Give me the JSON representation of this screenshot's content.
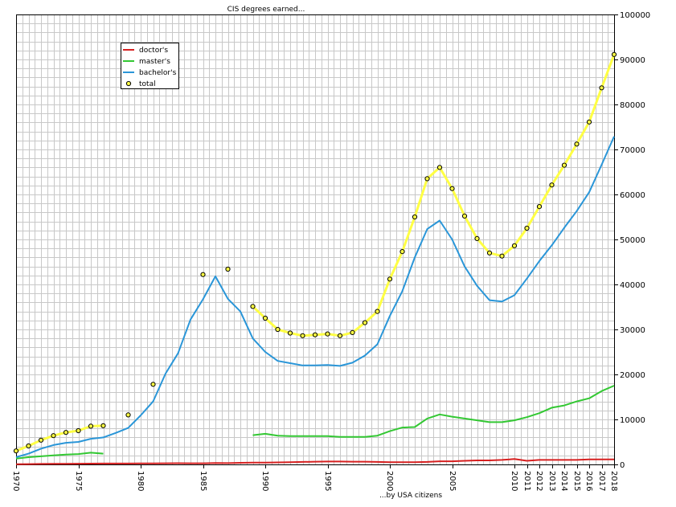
{
  "chart_data": {
    "type": "line",
    "title": "CIS degrees earned...",
    "xlabel": "...by USA citizens",
    "ylabel": "",
    "xlim": [
      1970,
      2018
    ],
    "ylim": [
      0,
      100000
    ],
    "grid": true,
    "legend_position": "top-left",
    "x_ticks": [
      {
        "value": 1970,
        "label": "1970"
      },
      {
        "value": 1975,
        "label": "1975"
      },
      {
        "value": 1980,
        "label": "1980"
      },
      {
        "value": 1985,
        "label": "1985"
      },
      {
        "value": 1990,
        "label": "1990"
      },
      {
        "value": 1995,
        "label": "1995"
      },
      {
        "value": 2000,
        "label": "2000"
      },
      {
        "value": 2005,
        "label": "2005"
      },
      {
        "value": 2010,
        "label": "2010"
      },
      {
        "value": 2011,
        "label": "2011"
      },
      {
        "value": 2012,
        "label": "2012"
      },
      {
        "value": 2013,
        "label": "2013"
      },
      {
        "value": 2014,
        "label": "2014"
      },
      {
        "value": 2015,
        "label": "2015"
      },
      {
        "value": 2016,
        "label": "2016"
      },
      {
        "value": 2017,
        "label": "2017"
      },
      {
        "value": 2018,
        "label": "2018"
      }
    ],
    "y_ticks": [
      {
        "value": 0,
        "label": "0"
      },
      {
        "value": 10000,
        "label": "10000"
      },
      {
        "value": 20000,
        "label": "20000"
      },
      {
        "value": 30000,
        "label": "30000"
      },
      {
        "value": 40000,
        "label": "40000"
      },
      {
        "value": 50000,
        "label": "50000"
      },
      {
        "value": 60000,
        "label": "60000"
      },
      {
        "value": 70000,
        "label": "70000"
      },
      {
        "value": 80000,
        "label": "80000"
      },
      {
        "value": 90000,
        "label": "90000"
      },
      {
        "value": 100000,
        "label": "100000"
      }
    ],
    "series": [
      {
        "name": "doctor's",
        "color": "#d62020",
        "style": "line",
        "points": [
          [
            1970,
            50
          ],
          [
            1971,
            80
          ],
          [
            1972,
            110
          ],
          [
            1973,
            130
          ],
          [
            1974,
            150
          ],
          [
            1975,
            160
          ],
          [
            1976,
            180
          ],
          [
            1977,
            190
          ],
          [
            1978,
            200
          ],
          [
            1979,
            200
          ],
          [
            1980,
            220
          ],
          [
            1981,
            230
          ],
          [
            1982,
            250
          ],
          [
            1983,
            260
          ],
          [
            1984,
            250
          ],
          [
            1985,
            250
          ],
          [
            1986,
            300
          ],
          [
            1987,
            280
          ],
          [
            1988,
            350
          ],
          [
            1989,
            400
          ],
          [
            1990,
            400
          ],
          [
            1991,
            450
          ],
          [
            1992,
            500
          ],
          [
            1993,
            550
          ],
          [
            1994,
            600
          ],
          [
            1995,
            650
          ],
          [
            1996,
            650
          ],
          [
            1997,
            600
          ],
          [
            1998,
            600
          ],
          [
            1999,
            550
          ],
          [
            2000,
            500
          ],
          [
            2001,
            500
          ],
          [
            2002,
            500
          ],
          [
            2003,
            550
          ],
          [
            2004,
            700
          ],
          [
            2005,
            700
          ],
          [
            2006,
            800
          ],
          [
            2007,
            900
          ],
          [
            2008,
            900
          ],
          [
            2009,
            1000
          ],
          [
            2010,
            1200
          ],
          [
            2011,
            800
          ],
          [
            2012,
            1000
          ],
          [
            2013,
            1000
          ],
          [
            2014,
            1000
          ],
          [
            2015,
            1000
          ],
          [
            2016,
            1100
          ],
          [
            2017,
            1100
          ],
          [
            2018,
            1100
          ]
        ]
      },
      {
        "name": "master's",
        "color": "#33c833",
        "style": "line",
        "points": [
          [
            1970,
            1300
          ],
          [
            1971,
            1600
          ],
          [
            1972,
            1800
          ],
          [
            1973,
            2000
          ],
          [
            1974,
            2200
          ],
          [
            1975,
            2300
          ],
          [
            1976,
            2600
          ],
          [
            1977,
            2400
          ],
          null,
          [
            1989,
            6500
          ],
          [
            1990,
            6800
          ],
          [
            1991,
            6400
          ],
          [
            1992,
            6300
          ],
          [
            1993,
            6300
          ],
          [
            1994,
            6300
          ],
          [
            1995,
            6300
          ],
          [
            1996,
            6100
          ],
          [
            1997,
            6100
          ],
          [
            1998,
            6100
          ],
          [
            1999,
            6400
          ],
          [
            2000,
            7400
          ],
          [
            2001,
            8200
          ],
          [
            2002,
            8300
          ],
          [
            2003,
            10200
          ],
          [
            2004,
            11100
          ],
          [
            2005,
            10600
          ],
          [
            2006,
            10200
          ],
          [
            2007,
            9800
          ],
          [
            2008,
            9400
          ],
          [
            2009,
            9400
          ],
          [
            2010,
            9800
          ],
          [
            2011,
            10500
          ],
          [
            2012,
            11400
          ],
          [
            2013,
            12600
          ],
          [
            2014,
            13100
          ],
          [
            2015,
            14000
          ],
          [
            2016,
            14700
          ],
          [
            2017,
            16300
          ],
          [
            2018,
            17500
          ]
        ]
      },
      {
        "name": "bachelor's",
        "color": "#2a96d8",
        "style": "line",
        "points": [
          [
            1970,
            1600
          ],
          [
            1971,
            2400
          ],
          [
            1972,
            3500
          ],
          [
            1973,
            4300
          ],
          [
            1974,
            4800
          ],
          [
            1975,
            5000
          ],
          [
            1976,
            5700
          ],
          [
            1977,
            6000
          ],
          [
            1978,
            7000
          ],
          [
            1979,
            8100
          ],
          [
            1980,
            10900
          ],
          [
            1981,
            14000
          ],
          [
            1982,
            20200
          ],
          [
            1983,
            24700
          ],
          [
            1984,
            32200
          ],
          [
            1985,
            36700
          ],
          [
            1986,
            41800
          ],
          [
            1987,
            36800
          ],
          [
            1988,
            34000
          ],
          [
            1989,
            28000
          ],
          [
            1990,
            25000
          ],
          [
            1991,
            23000
          ],
          [
            1992,
            22500
          ],
          [
            1993,
            22000
          ],
          [
            1994,
            22000
          ],
          [
            1995,
            22100
          ],
          [
            1996,
            21900
          ],
          [
            1997,
            22600
          ],
          [
            1998,
            24200
          ],
          [
            1999,
            26700
          ],
          [
            2000,
            33000
          ],
          [
            2001,
            38500
          ],
          [
            2002,
            46000
          ],
          [
            2003,
            52300
          ],
          [
            2004,
            54200
          ],
          [
            2005,
            50000
          ],
          [
            2006,
            44000
          ],
          [
            2007,
            39700
          ],
          [
            2008,
            36500
          ],
          [
            2009,
            36200
          ],
          [
            2010,
            37600
          ],
          [
            2011,
            41300
          ],
          [
            2012,
            45200
          ],
          [
            2013,
            48700
          ],
          [
            2014,
            52600
          ],
          [
            2015,
            56300
          ],
          [
            2016,
            60500
          ],
          [
            2017,
            66600
          ],
          [
            2018,
            72900
          ]
        ]
      },
      {
        "name": "total",
        "color": "#000000",
        "style": "markers",
        "line_color": "#ffff44",
        "points": [
          [
            1970,
            3000
          ],
          [
            1971,
            4100
          ],
          [
            1972,
            5400
          ],
          [
            1973,
            6400
          ],
          [
            1974,
            7100
          ],
          [
            1975,
            7500
          ],
          [
            1976,
            8500
          ],
          [
            1977,
            8600
          ],
          [
            1979,
            11000
          ],
          [
            1981,
            17800
          ],
          [
            1985,
            42200
          ],
          [
            1987,
            43400
          ],
          [
            1989,
            35100
          ],
          [
            1990,
            32500
          ],
          [
            1991,
            30000
          ],
          [
            1992,
            29200
          ],
          [
            1993,
            28600
          ],
          [
            1994,
            28800
          ],
          [
            1995,
            29000
          ],
          [
            1996,
            28600
          ],
          [
            1997,
            29300
          ],
          [
            1998,
            31500
          ],
          [
            1999,
            34000
          ],
          [
            2000,
            41200
          ],
          [
            2001,
            47300
          ],
          [
            2002,
            55000
          ],
          [
            2003,
            63500
          ],
          [
            2004,
            66000
          ],
          [
            2005,
            61300
          ],
          [
            2006,
            55200
          ],
          [
            2007,
            50200
          ],
          [
            2008,
            47000
          ],
          [
            2009,
            46300
          ],
          [
            2010,
            48600
          ],
          [
            2011,
            52500
          ],
          [
            2012,
            57300
          ],
          [
            2013,
            62100
          ],
          [
            2014,
            66500
          ],
          [
            2015,
            71200
          ],
          [
            2016,
            76100
          ],
          [
            2017,
            83700
          ],
          [
            2018,
            91100
          ]
        ],
        "line_from": 1989
      }
    ]
  }
}
